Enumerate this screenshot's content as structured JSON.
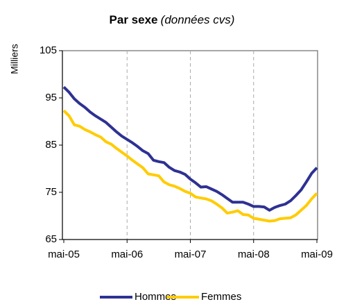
{
  "chart_data": {
    "type": "line",
    "title": "Par sexe",
    "subtitle": "(données cvs)",
    "y_label": "Milliers",
    "categories": [
      "mai-05",
      null,
      null,
      null,
      null,
      null,
      null,
      null,
      null,
      null,
      null,
      null,
      "mai-06",
      null,
      null,
      null,
      null,
      null,
      null,
      null,
      null,
      null,
      null,
      null,
      "mai-07",
      null,
      null,
      null,
      null,
      null,
      null,
      null,
      null,
      null,
      null,
      null,
      "mai-08",
      null,
      null,
      null,
      null,
      null,
      null,
      null,
      null,
      null,
      null,
      null,
      "mai-09"
    ],
    "series": [
      {
        "name": "Hommes",
        "color": "#2e3192",
        "values": [
          97.3,
          96.2,
          94.8,
          93.8,
          93.0,
          92.0,
          91.2,
          90.5,
          89.8,
          88.8,
          87.8,
          86.9,
          86.2,
          85.5,
          84.7,
          83.8,
          83.2,
          81.8,
          81.5,
          81.3,
          80.3,
          79.6,
          79.3,
          78.8,
          77.8,
          77.0,
          76.1,
          76.2,
          75.7,
          75.2,
          74.5,
          73.7,
          72.9,
          72.9,
          72.9,
          72.5,
          72.0,
          72.0,
          71.9,
          71.2,
          71.8,
          72.2,
          72.5,
          73.2,
          74.3,
          75.5,
          77.2,
          79.0,
          80.2
        ]
      },
      {
        "name": "Femmes",
        "color": "#ffcc00",
        "values": [
          92.3,
          91.2,
          89.3,
          89.0,
          88.3,
          87.8,
          87.2,
          86.7,
          85.7,
          85.2,
          84.3,
          83.5,
          82.7,
          81.8,
          81.0,
          80.2,
          78.9,
          78.7,
          78.5,
          77.2,
          76.6,
          76.3,
          75.8,
          75.2,
          74.8,
          74.0,
          73.8,
          73.6,
          73.2,
          72.5,
          71.7,
          70.6,
          70.8,
          71.1,
          70.3,
          70.2,
          69.5,
          69.3,
          69.1,
          68.9,
          69.0,
          69.4,
          69.5,
          69.6,
          70.2,
          71.2,
          72.2,
          73.6,
          74.8
        ]
      }
    ],
    "ylim": [
      65,
      105
    ],
    "yticks": [
      65,
      75,
      85,
      95,
      105
    ],
    "xgrid": true,
    "legend": "bottom"
  }
}
